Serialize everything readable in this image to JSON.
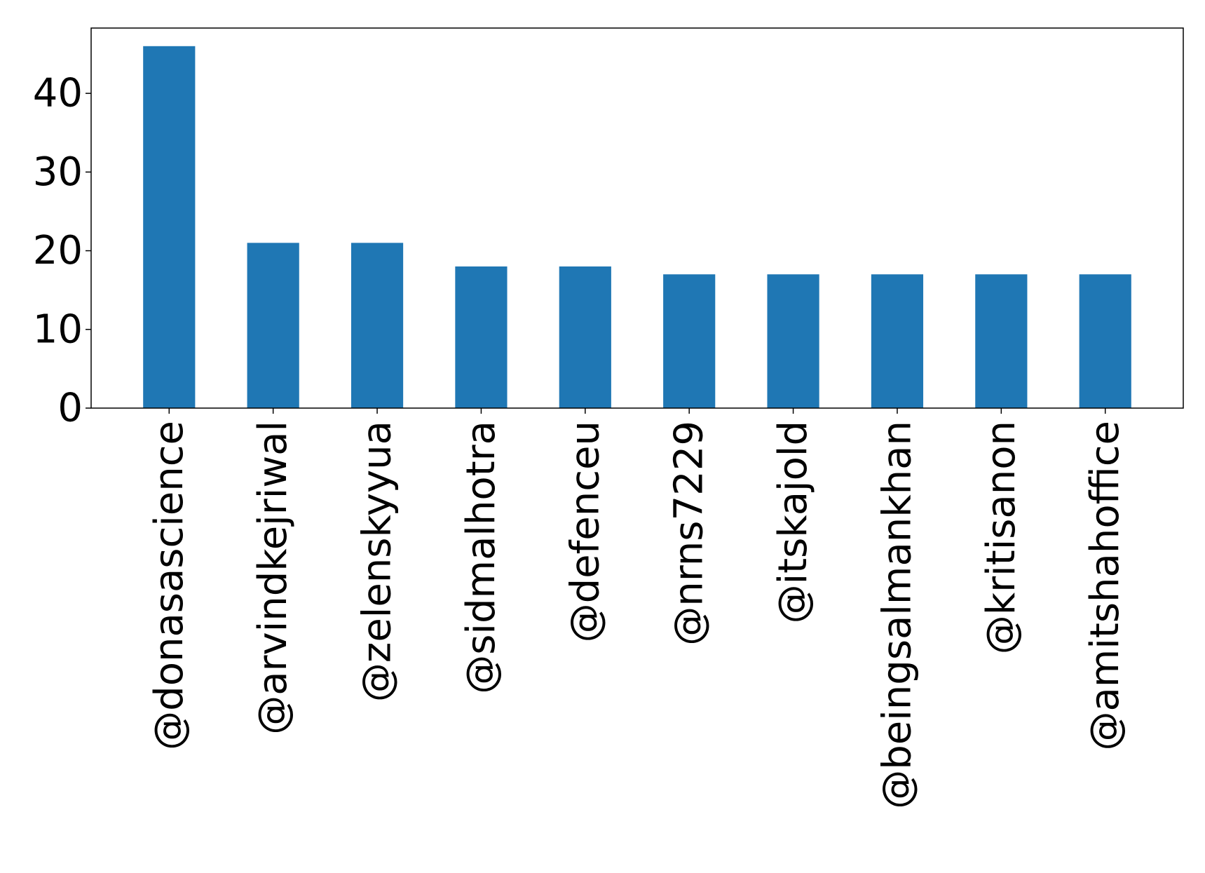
{
  "chart_data": {
    "type": "bar",
    "title": "",
    "xlabel": "",
    "ylabel": "",
    "categories": [
      "@donasascience",
      "@arvindkejriwal",
      "@zelenskyyua",
      "@sidmalhotra",
      "@defenceu",
      "@nrns7229",
      "@itskajold",
      "@beingsalmankhan",
      "@kritisanon",
      "@amitshahoffice"
    ],
    "values": [
      46,
      21,
      21,
      18,
      18,
      17,
      17,
      17,
      17,
      17
    ],
    "ylim": [
      0,
      48.3
    ],
    "yticks": [
      0,
      10,
      20,
      30,
      40
    ],
    "grid": false,
    "legend": "none",
    "bar_color": "#1f77b4"
  }
}
